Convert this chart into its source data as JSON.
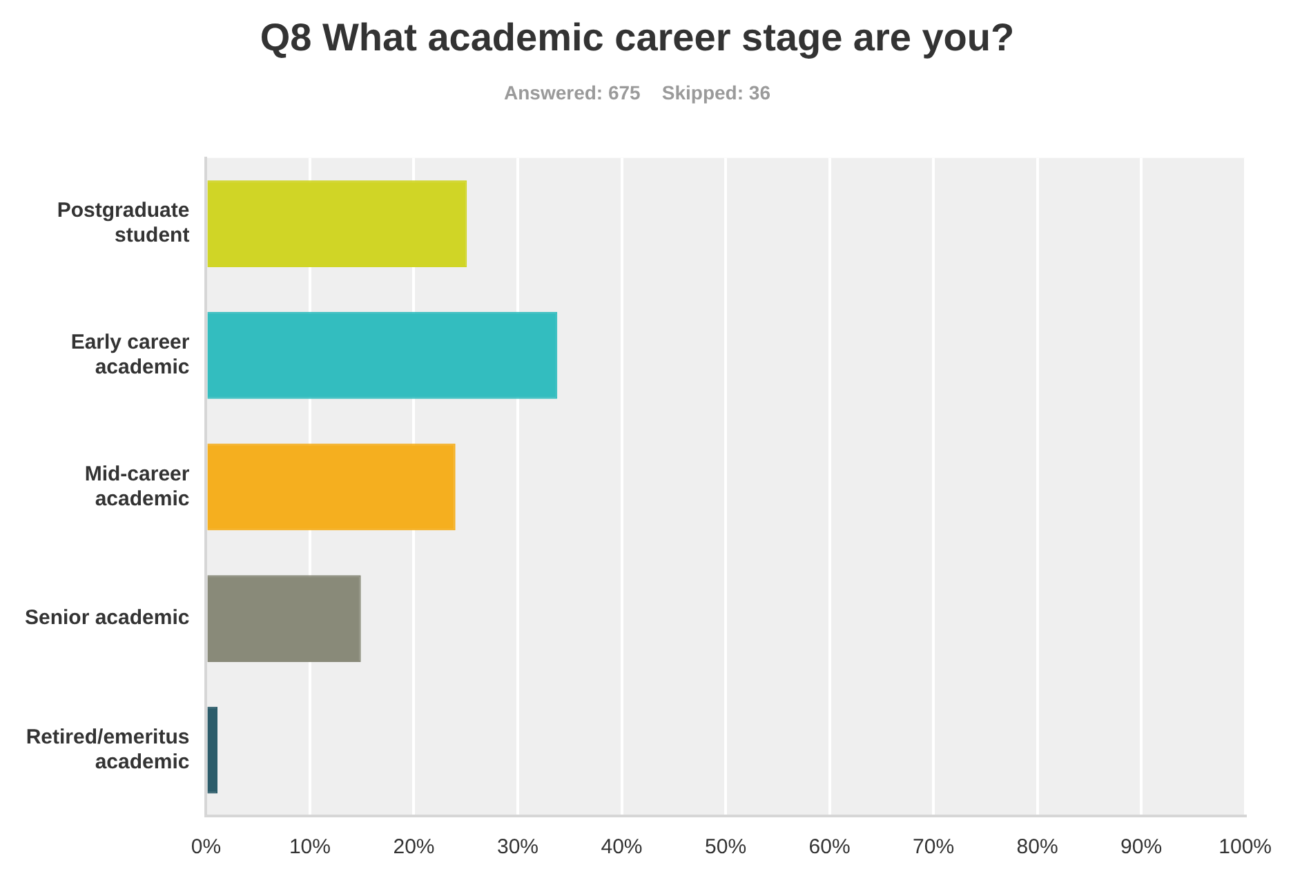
{
  "chart_data": {
    "type": "bar",
    "orientation": "horizontal",
    "title": "Q8 What academic career stage are you?",
    "subtitle": "Answered: 675    Skipped: 36",
    "categories": [
      "Postgraduate student",
      "Early career academic",
      "Mid-career academic",
      "Senior academic",
      "Retired/emeritus academic"
    ],
    "values": [
      25.1,
      33.8,
      24.0,
      14.9,
      1.1
    ],
    "colors": [
      "#d0d526",
      "#33bdbf",
      "#f5af1f",
      "#898a79",
      "#2c5c6a"
    ],
    "xlim": [
      0,
      100
    ],
    "xticks": [
      {
        "value": 0,
        "label": "0%"
      },
      {
        "value": 10,
        "label": "10%"
      },
      {
        "value": 20,
        "label": "20%"
      },
      {
        "value": 30,
        "label": "30%"
      },
      {
        "value": 40,
        "label": "40%"
      },
      {
        "value": 50,
        "label": "50%"
      },
      {
        "value": 60,
        "label": "60%"
      },
      {
        "value": 70,
        "label": "70%"
      },
      {
        "value": 80,
        "label": "80%"
      },
      {
        "value": 90,
        "label": "90%"
      },
      {
        "value": 100,
        "label": "100%"
      }
    ],
    "grid": "x",
    "legend": false
  }
}
